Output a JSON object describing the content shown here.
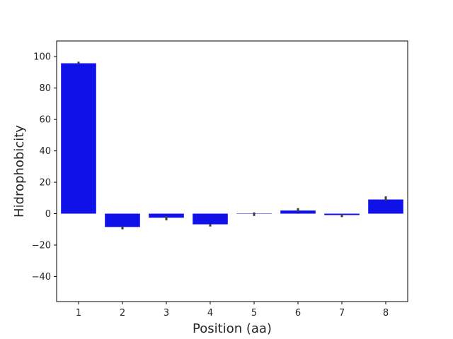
{
  "chart_data": {
    "type": "bar",
    "xlabel": "Position (aa)",
    "ylabel": "Hidrophobicity",
    "categories": [
      "1",
      "2",
      "3",
      "4",
      "5",
      "6",
      "7",
      "8"
    ],
    "values": [
      95.8,
      -8.5,
      -2.6,
      -6.8,
      -0.2,
      2.0,
      -0.9,
      9.0
    ],
    "error_low": [
      95.5,
      -10.0,
      -4.3,
      -8.2,
      -1.5,
      1.2,
      -2.2,
      8.0
    ],
    "error_high": [
      96.8,
      -8.0,
      -1.5,
      -6.5,
      0.8,
      3.5,
      -0.2,
      11.0
    ],
    "ylim": [
      -56,
      110
    ],
    "yticks": [
      -40,
      -20,
      0,
      20,
      40,
      60,
      80,
      100
    ],
    "bar_color": "#1010e8",
    "error_color": "#3d3d3d",
    "grid": false,
    "legend": "none"
  }
}
